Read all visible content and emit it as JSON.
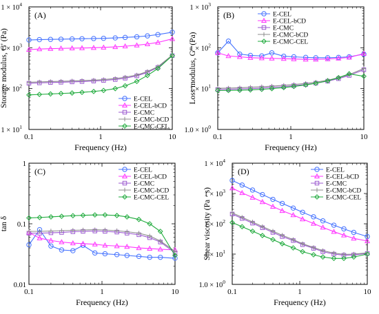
{
  "chart_data": [
    {
      "type": "line",
      "panel_label": "(A)",
      "xlabel": "Frequency (Hz)",
      "ylabel": "Storage modulus, G' (Pa)",
      "xscale": "log",
      "yscale": "log",
      "xlim": [
        0.1,
        10
      ],
      "ylim": [
        10,
        10000
      ],
      "xticks": [
        "0.1",
        "1",
        "10"
      ],
      "yticks": [
        {
          "base": "10",
          "exp": "1"
        },
        {
          "base": "10",
          "exp": "2"
        },
        {
          "base": "10",
          "exp": "3"
        },
        {
          "base": "10",
          "exp": "4"
        }
      ],
      "legend_position": "lower-right",
      "x": [
        0.1,
        0.14,
        0.2,
        0.28,
        0.4,
        0.55,
        0.8,
        1.1,
        1.6,
        2.2,
        3.2,
        4.5,
        6.3,
        10
      ],
      "series": [
        {
          "name": "E-CEL",
          "values": [
            1550,
            1580,
            1600,
            1620,
            1640,
            1660,
            1680,
            1700,
            1740,
            1790,
            1850,
            1950,
            2100,
            2400
          ]
        },
        {
          "name": "E-CEL-bCD",
          "values": [
            900,
            930,
            950,
            965,
            975,
            985,
            1000,
            1020,
            1050,
            1090,
            1150,
            1230,
            1350,
            1650
          ]
        },
        {
          "name": "E-CMC",
          "values": [
            135,
            138,
            141,
            143,
            146,
            149,
            153,
            158,
            167,
            180,
            205,
            250,
            330,
            640
          ]
        },
        {
          "name": "E-CMC-bCD",
          "values": [
            143,
            146,
            149,
            151,
            154,
            157,
            161,
            166,
            176,
            190,
            215,
            262,
            345,
            660
          ]
        },
        {
          "name": "E-CMC-CEL",
          "values": [
            70,
            72,
            74,
            76,
            78,
            81,
            85,
            90,
            100,
            117,
            150,
            210,
            310,
            640
          ]
        }
      ]
    },
    {
      "type": "line",
      "panel_label": "(B)",
      "xlabel": "Frequency (Hz)",
      "ylabel": "Loss modulus, G\" (Pa)",
      "xscale": "log",
      "yscale": "log",
      "xlim": [
        0.1,
        10
      ],
      "ylim": [
        1,
        1000
      ],
      "xticks": [
        "0.1",
        "1",
        "10"
      ],
      "yticks": [
        {
          "base": "1.0",
          "exp": "0",
          "mant": true
        },
        {
          "base": "10",
          "exp": "1"
        },
        {
          "base": "10",
          "exp": "2"
        },
        {
          "base": "10",
          "exp": "3"
        }
      ],
      "legend_position": "top-center",
      "x": [
        0.1,
        0.14,
        0.2,
        0.28,
        0.4,
        0.55,
        0.8,
        1.1,
        1.6,
        2.2,
        3.2,
        4.5,
        6.3,
        10
      ],
      "series": [
        {
          "name": "E-CEL",
          "values": [
            75,
            145,
            70,
            65,
            63,
            75,
            62,
            60,
            58,
            57,
            57,
            58,
            60,
            70
          ]
        },
        {
          "name": "E-CEL-bCD",
          "values": [
            75,
            63,
            60,
            57,
            56,
            55,
            54,
            53,
            52,
            52,
            53,
            55,
            58,
            72
          ]
        },
        {
          "name": "E-CMC",
          "values": [
            9.5,
            9.6,
            9.8,
            10.0,
            10.3,
            10.7,
            11.2,
            11.8,
            12.6,
            13.6,
            15.2,
            17.5,
            21,
            29
          ]
        },
        {
          "name": "E-CMC-bCD",
          "values": [
            10.2,
            10.3,
            10.5,
            10.8,
            11.1,
            11.5,
            12.0,
            12.6,
            13.4,
            14.4,
            16.0,
            18.5,
            22,
            31
          ]
        },
        {
          "name": "E-CMC-CEL",
          "values": [
            9.0,
            9.0,
            9.1,
            9.3,
            9.6,
            10.0,
            10.6,
            11.3,
            12.3,
            13.5,
            15.5,
            18.5,
            23,
            20
          ]
        }
      ]
    },
    {
      "type": "line",
      "panel_label": "(C)",
      "xlabel": "Frequency (Hz)",
      "ylabel": "tan δ",
      "xscale": "log",
      "yscale": "log",
      "xlim": [
        0.1,
        10
      ],
      "ylim": [
        0.01,
        1
      ],
      "xticks": [
        "0.1",
        "1",
        "10"
      ],
      "yticks": [
        "0.01",
        "0.1",
        "1"
      ],
      "legend_position": "top-right",
      "x": [
        0.1,
        0.14,
        0.2,
        0.28,
        0.4,
        0.55,
        0.8,
        1.1,
        1.6,
        2.2,
        3.2,
        4.5,
        6.3,
        10
      ],
      "series": [
        {
          "name": "E-CEL",
          "values": [
            0.045,
            0.08,
            0.043,
            0.037,
            0.036,
            0.044,
            0.033,
            0.032,
            0.031,
            0.03,
            0.029,
            0.028,
            0.028,
            0.027
          ]
        },
        {
          "name": "E-CEL-bCD",
          "values": [
            0.072,
            0.058,
            0.053,
            0.05,
            0.048,
            0.047,
            0.046,
            0.044,
            0.043,
            0.042,
            0.04,
            0.039,
            0.038,
            0.037
          ]
        },
        {
          "name": "E-CMC",
          "values": [
            0.07,
            0.07,
            0.071,
            0.072,
            0.074,
            0.075,
            0.076,
            0.075,
            0.073,
            0.07,
            0.066,
            0.059,
            0.05,
            0.033
          ]
        },
        {
          "name": "E-CMC-bCD",
          "values": [
            0.075,
            0.075,
            0.076,
            0.077,
            0.078,
            0.079,
            0.08,
            0.079,
            0.077,
            0.074,
            0.07,
            0.063,
            0.052,
            0.035
          ]
        },
        {
          "name": "E-CMC-CEL",
          "values": [
            0.125,
            0.127,
            0.13,
            0.133,
            0.136,
            0.138,
            0.14,
            0.14,
            0.137,
            0.13,
            0.118,
            0.1,
            0.075,
            0.03
          ]
        }
      ]
    },
    {
      "type": "line",
      "panel_label": "(D)",
      "xlabel": "Frequency (Hz)",
      "ylabel": "Shear viscosity (Pa · s)",
      "xscale": "log",
      "yscale": "log",
      "xlim": [
        0.1,
        10
      ],
      "ylim": [
        1,
        10000
      ],
      "xticks": [
        "0.1",
        "1",
        "10"
      ],
      "yticks": [
        {
          "base": "1.0",
          "exp": "0",
          "mant": true
        },
        {
          "base": "10",
          "exp": "1"
        },
        {
          "base": "10",
          "exp": "2"
        },
        {
          "base": "10",
          "exp": "3"
        },
        {
          "base": "10",
          "exp": "4"
        }
      ],
      "legend_position": "top-right",
      "x": [
        0.1,
        0.14,
        0.2,
        0.28,
        0.4,
        0.55,
        0.8,
        1.1,
        1.6,
        2.2,
        3.2,
        4.5,
        6.3,
        10
      ],
      "series": [
        {
          "name": "E-CEL",
          "values": [
            2700,
            1900,
            1300,
            920,
            640,
            470,
            330,
            240,
            170,
            125,
            90,
            68,
            52,
            38
          ]
        },
        {
          "name": "E-CEL-bCD",
          "values": [
            1500,
            1050,
            740,
            530,
            370,
            270,
            195,
            143,
            102,
            76,
            55,
            42,
            33,
            27
          ]
        },
        {
          "name": "E-CMC",
          "values": [
            210,
            150,
            105,
            74,
            52,
            38,
            28,
            20.5,
            15.5,
            12,
            10,
            9.2,
            9.4,
            10.5
          ]
        },
        {
          "name": "E-CMC-bCD",
          "values": [
            230,
            164,
            115,
            81,
            57,
            42,
            30,
            22,
            16.5,
            13,
            10.8,
            9.8,
            10,
            11
          ]
        },
        {
          "name": "E-CMC-CEL",
          "values": [
            110,
            80,
            57,
            41,
            30,
            22,
            16,
            12,
            9.5,
            8,
            7.2,
            7.2,
            8,
            10
          ]
        }
      ]
    }
  ],
  "series_colors": [
    "#4472ff",
    "#ff33ff",
    "#9b59d0",
    "#8c8c8c",
    "#1faa3c"
  ],
  "series_markers": [
    "circle",
    "triangle",
    "square",
    "plus",
    "diamond"
  ]
}
